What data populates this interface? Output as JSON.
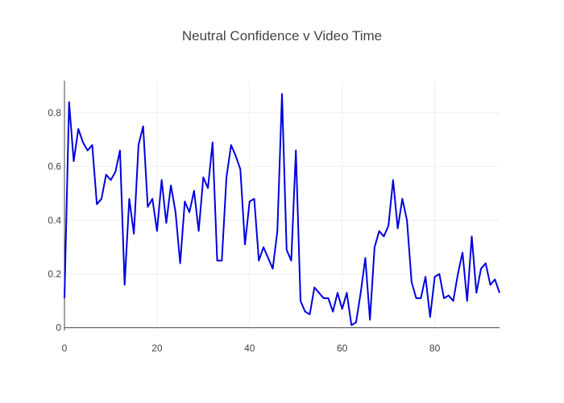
{
  "chart_data": {
    "type": "line",
    "title": "Neutral Confidence v Video Time",
    "xlabel": "",
    "ylabel": "",
    "xlim": [
      0,
      94
    ],
    "ylim": [
      -0.01,
      0.92
    ],
    "x_ticks": [
      0,
      20,
      40,
      60,
      80
    ],
    "x_tick_labels": [
      "0",
      "20",
      "40",
      "60",
      "80"
    ],
    "y_ticks": [
      0,
      0.2,
      0.4,
      0.6,
      0.8
    ],
    "y_tick_labels": [
      "0",
      "0.2",
      "0.4",
      "0.6",
      "0.8"
    ],
    "grid": true,
    "legend": false,
    "series": [
      {
        "color": "#0000dd",
        "x": [
          0,
          1,
          2,
          3,
          4,
          5,
          6,
          7,
          8,
          9,
          10,
          11,
          12,
          13,
          14,
          15,
          16,
          17,
          18,
          19,
          20,
          21,
          22,
          23,
          24,
          25,
          26,
          27,
          28,
          29,
          30,
          31,
          32,
          33,
          34,
          35,
          36,
          37,
          38,
          39,
          40,
          41,
          42,
          43,
          44,
          45,
          46,
          47,
          48,
          49,
          50,
          51,
          52,
          53,
          54,
          55,
          56,
          57,
          58,
          59,
          60,
          61,
          62,
          63,
          64,
          65,
          66,
          67,
          68,
          69,
          70,
          71,
          72,
          73,
          74,
          75,
          76,
          77,
          78,
          79,
          80,
          81,
          82,
          83,
          84,
          85,
          86,
          87,
          88,
          89,
          90,
          91,
          92,
          93,
          94
        ],
        "y": [
          0.11,
          0.84,
          0.62,
          0.74,
          0.69,
          0.66,
          0.68,
          0.46,
          0.48,
          0.57,
          0.55,
          0.58,
          0.66,
          0.16,
          0.48,
          0.35,
          0.68,
          0.75,
          0.45,
          0.48,
          0.36,
          0.55,
          0.39,
          0.53,
          0.43,
          0.24,
          0.47,
          0.43,
          0.51,
          0.36,
          0.56,
          0.52,
          0.69,
          0.25,
          0.25,
          0.56,
          0.68,
          0.64,
          0.59,
          0.31,
          0.47,
          0.48,
          0.25,
          0.3,
          0.26,
          0.22,
          0.36,
          0.87,
          0.29,
          0.25,
          0.66,
          0.1,
          0.06,
          0.05,
          0.15,
          0.13,
          0.11,
          0.11,
          0.06,
          0.13,
          0.07,
          0.13,
          0.01,
          0.02,
          0.13,
          0.26,
          0.03,
          0.3,
          0.36,
          0.34,
          0.38,
          0.55,
          0.37,
          0.48,
          0.4,
          0.17,
          0.11,
          0.11,
          0.19,
          0.04,
          0.19,
          0.2,
          0.11,
          0.12,
          0.1,
          0.2,
          0.28,
          0.1,
          0.34,
          0.13,
          0.22,
          0.24,
          0.16,
          0.18,
          0.13
        ]
      }
    ]
  }
}
